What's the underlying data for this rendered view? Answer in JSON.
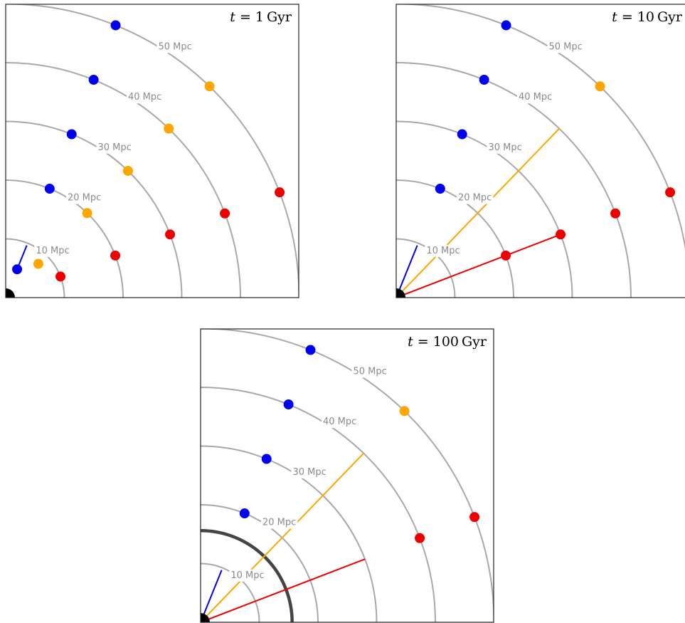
{
  "colors": {
    "blue": "#0000ee",
    "orange": "#ffa500",
    "red": "#ee0000",
    "ring": "#a8a8a8",
    "horizon": "#444444",
    "origin": "#000000"
  },
  "ring_labels": [
    "10 Mpc",
    "20 Mpc",
    "30 Mpc",
    "40 Mpc",
    "50 Mpc"
  ],
  "panels": [
    {
      "title_var": "t",
      "title_eq": " = ",
      "title_value": "1",
      "title_unit": "Gyr",
      "horizon_radius_mpc": null,
      "galaxies": [
        {
          "color": "blue",
          "r_mpc": 5.2,
          "angle_deg": 68
        },
        {
          "color": "blue",
          "r_mpc": 20,
          "angle_deg": 68
        },
        {
          "color": "blue",
          "r_mpc": 30,
          "angle_deg": 68
        },
        {
          "color": "blue",
          "r_mpc": 40,
          "angle_deg": 68
        },
        {
          "color": "blue",
          "r_mpc": 50,
          "angle_deg": 68
        },
        {
          "color": "orange",
          "r_mpc": 8,
          "angle_deg": 46
        },
        {
          "color": "orange",
          "r_mpc": 20,
          "angle_deg": 46
        },
        {
          "color": "orange",
          "r_mpc": 30,
          "angle_deg": 46
        },
        {
          "color": "orange",
          "r_mpc": 40,
          "angle_deg": 46
        },
        {
          "color": "orange",
          "r_mpc": 50,
          "angle_deg": 46
        },
        {
          "color": "red",
          "r_mpc": 10,
          "angle_deg": 21
        },
        {
          "color": "red",
          "r_mpc": 20,
          "angle_deg": 21
        },
        {
          "color": "red",
          "r_mpc": 30,
          "angle_deg": 21
        },
        {
          "color": "red",
          "r_mpc": 40,
          "angle_deg": 21
        },
        {
          "color": "red",
          "r_mpc": 50,
          "angle_deg": 21
        }
      ],
      "rays": [
        {
          "color": "blue",
          "from_mpc": 5.6,
          "to_mpc": 9.6,
          "angle_deg": 68
        }
      ]
    },
    {
      "title_var": "t",
      "title_eq": " = ",
      "title_value": "10",
      "title_unit": "Gyr",
      "horizon_radius_mpc": null,
      "galaxies": [
        {
          "color": "blue",
          "r_mpc": 20,
          "angle_deg": 68
        },
        {
          "color": "blue",
          "r_mpc": 30,
          "angle_deg": 68
        },
        {
          "color": "blue",
          "r_mpc": 40,
          "angle_deg": 68
        },
        {
          "color": "blue",
          "r_mpc": 50,
          "angle_deg": 68
        },
        {
          "color": "orange",
          "r_mpc": 50,
          "angle_deg": 46
        },
        {
          "color": "red",
          "r_mpc": 20,
          "angle_deg": 21
        },
        {
          "color": "red",
          "r_mpc": 30,
          "angle_deg": 21
        },
        {
          "color": "red",
          "r_mpc": 40,
          "angle_deg": 21
        },
        {
          "color": "red",
          "r_mpc": 50,
          "angle_deg": 21
        }
      ],
      "rays": [
        {
          "color": "blue",
          "from_mpc": 0,
          "to_mpc": 9.6,
          "angle_deg": 68
        },
        {
          "color": "orange",
          "from_mpc": 0,
          "to_mpc": 40,
          "angle_deg": 46
        },
        {
          "color": "red",
          "from_mpc": 0,
          "to_mpc": 30,
          "angle_deg": 21
        }
      ]
    },
    {
      "title_var": "t",
      "title_eq": " = ",
      "title_value": "100",
      "title_unit": "Gyr",
      "horizon_radius_mpc": 15.6,
      "galaxies": [
        {
          "color": "blue",
          "r_mpc": 20,
          "angle_deg": 68
        },
        {
          "color": "blue",
          "r_mpc": 30,
          "angle_deg": 68
        },
        {
          "color": "blue",
          "r_mpc": 40,
          "angle_deg": 68
        },
        {
          "color": "blue",
          "r_mpc": 50,
          "angle_deg": 68
        },
        {
          "color": "orange",
          "r_mpc": 50,
          "angle_deg": 46
        },
        {
          "color": "red",
          "r_mpc": 40,
          "angle_deg": 21
        },
        {
          "color": "red",
          "r_mpc": 50,
          "angle_deg": 21
        }
      ],
      "rays": [
        {
          "color": "blue",
          "from_mpc": 0,
          "to_mpc": 9.6,
          "angle_deg": 68
        },
        {
          "color": "orange",
          "from_mpc": 0,
          "to_mpc": 40,
          "angle_deg": 46
        },
        {
          "color": "red",
          "from_mpc": 0,
          "to_mpc": 30,
          "angle_deg": 21
        }
      ]
    }
  ]
}
